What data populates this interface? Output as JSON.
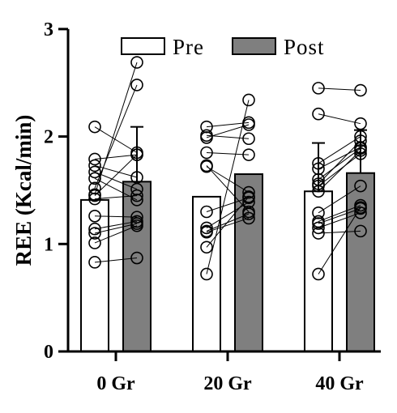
{
  "chart_data": {
    "type": "bar",
    "title": "",
    "ylabel": "REE (Kcal/min)",
    "xlabel": "",
    "ylim": [
      0,
      3
    ],
    "yticks": [
      "0",
      "1",
      "2",
      "3"
    ],
    "categories": [
      "0 Gr",
      "20 Gr",
      "40 Gr"
    ],
    "legend_position": "top",
    "series": [
      {
        "name": "Pre",
        "color": "#ffffff",
        "values": [
          1.41,
          1.44,
          1.49
        ],
        "errors": [
          0,
          0,
          0.45
        ]
      },
      {
        "name": "Post",
        "color": "#7f7f7f",
        "values": [
          1.58,
          1.65,
          1.66
        ],
        "errors": [
          0.51,
          0,
          0.4
        ]
      }
    ],
    "paired_points": [
      [
        [
          2.09,
          1.85
        ],
        [
          1.79,
          1.83
        ],
        [
          1.73,
          1.62
        ],
        [
          1.67,
          1.51
        ],
        [
          1.61,
          1.41
        ],
        [
          1.52,
          2.48
        ],
        [
          1.46,
          2.69
        ],
        [
          1.45,
          1.83
        ],
        [
          1.42,
          1.45
        ],
        [
          1.26,
          1.25
        ],
        [
          1.14,
          1.21
        ],
        [
          1.1,
          1.19
        ],
        [
          1.01,
          1.17
        ],
        [
          0.83,
          0.87
        ]
      ],
      [
        [
          2.09,
          2.13
        ],
        [
          2.01,
          1.98
        ],
        [
          1.99,
          2.11
        ],
        [
          1.85,
          1.83
        ],
        [
          1.72,
          1.48
        ],
        [
          1.73,
          1.3
        ],
        [
          1.3,
          1.43
        ],
        [
          1.15,
          1.39
        ],
        [
          1.12,
          1.28
        ],
        [
          1.11,
          1.24
        ],
        [
          0.97,
          1.44
        ],
        [
          0.72,
          2.34
        ]
      ],
      [
        [
          2.45,
          2.43
        ],
        [
          2.21,
          2.12
        ],
        [
          1.75,
          2.0
        ],
        [
          1.7,
          1.9
        ],
        [
          1.6,
          1.89
        ],
        [
          1.56,
          1.96
        ],
        [
          1.54,
          1.84
        ],
        [
          1.49,
          1.87
        ],
        [
          1.29,
          1.54
        ],
        [
          1.21,
          1.36
        ],
        [
          1.19,
          1.33
        ],
        [
          1.15,
          1.29
        ],
        [
          1.1,
          1.12
        ],
        [
          0.72,
          1.34
        ]
      ]
    ]
  }
}
